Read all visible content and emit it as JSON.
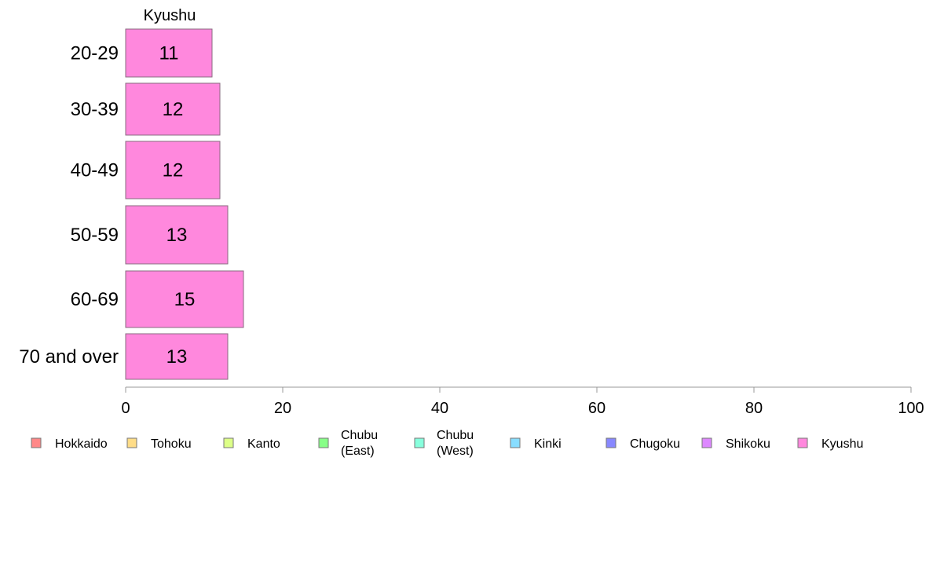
{
  "chart_data": {
    "type": "bar",
    "orientation": "horizontal",
    "series_title": "Kyushu",
    "categories": [
      "20-29",
      "30-39",
      "40-49",
      "50-59",
      "60-69",
      "70 and over"
    ],
    "series": [
      {
        "name": "Kyushu",
        "values": [
          11,
          12,
          12,
          13,
          15,
          13
        ],
        "color": "#ff88dd"
      }
    ],
    "xlim": [
      0,
      100
    ],
    "xticks": [
      0,
      20,
      40,
      60,
      80,
      100
    ],
    "grid": false,
    "legend_position": "bottom",
    "legend": [
      {
        "lines": [
          "Hokkaido"
        ],
        "color": "#ff8888"
      },
      {
        "lines": [
          "Tohoku"
        ],
        "color": "#ffdd88"
      },
      {
        "lines": [
          "Kanto"
        ],
        "color": "#ddff88"
      },
      {
        "lines": [
          "Chubu",
          "(East)"
        ],
        "color": "#88ff88"
      },
      {
        "lines": [
          "Chubu",
          "(West)"
        ],
        "color": "#88ffdd"
      },
      {
        "lines": [
          "Kinki"
        ],
        "color": "#88ddff"
      },
      {
        "lines": [
          "Chugoku"
        ],
        "color": "#8888ff"
      },
      {
        "lines": [
          "Shikoku"
        ],
        "color": "#dd88ff"
      },
      {
        "lines": [
          "Kyushu"
        ],
        "color": "#ff88dd"
      }
    ]
  }
}
